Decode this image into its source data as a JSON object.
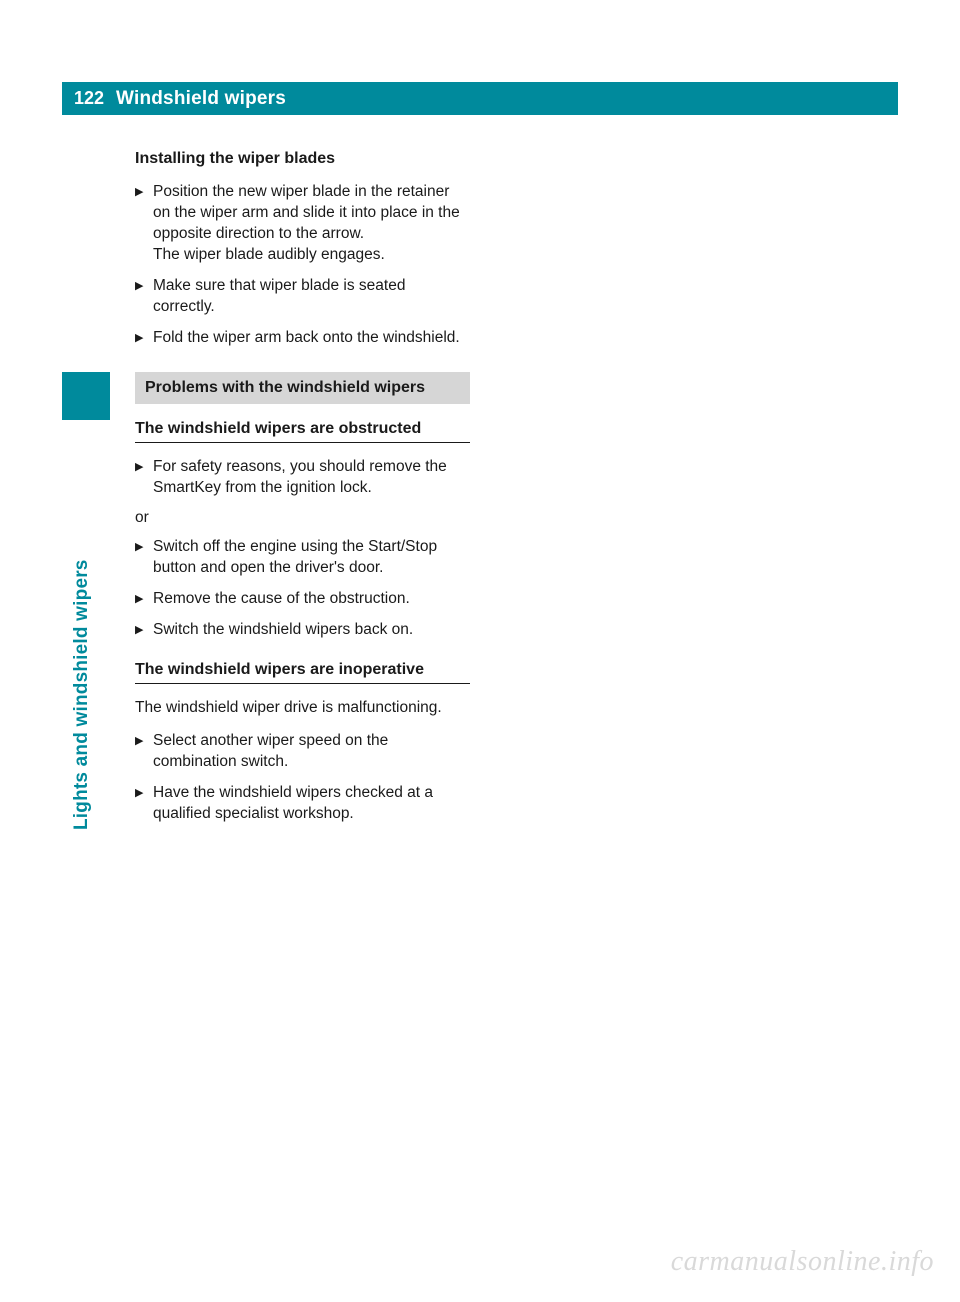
{
  "header": {
    "page_number": "122",
    "title": "Windshield wipers",
    "bar_color": "#008a9c",
    "text_color": "#ffffff"
  },
  "sidetab": {
    "text": "Lights and windshield wipers",
    "color": "#008a9c"
  },
  "sections": {
    "installing": {
      "heading": "Installing the wiper blades",
      "steps": [
        "Position the new wiper blade in the retainer on the wiper arm and slide it into place in the opposite direction to the arrow.\nThe wiper blade audibly engages.",
        "Make sure that wiper blade is seated correctly.",
        "Fold the wiper arm back onto the windshield."
      ]
    },
    "problems": {
      "box_heading": "Problems with the windshield wipers",
      "obstructed": {
        "heading": "The windshield wipers are obstructed",
        "step1": "For safety reasons, you should remove the SmartKey from the ignition lock.",
        "or": "or",
        "step2": "Switch off the engine using the Start/Stop button and open the driver's door.",
        "step3": "Remove the cause of the obstruction.",
        "step4": "Switch the windshield wipers back on."
      },
      "inoperative": {
        "heading": "The windshield wipers are inoperative",
        "intro": "The windshield wiper drive is malfunctioning.",
        "step1": "Select another wiper speed on the combination switch.",
        "step2": "Have the windshield wipers checked at a qualified specialist workshop."
      }
    }
  },
  "watermark": "carmanualsonline.info",
  "colors": {
    "body_text": "#1a1a1a",
    "box_bg": "#d6d6d6",
    "watermark": "#d9d9d9"
  }
}
